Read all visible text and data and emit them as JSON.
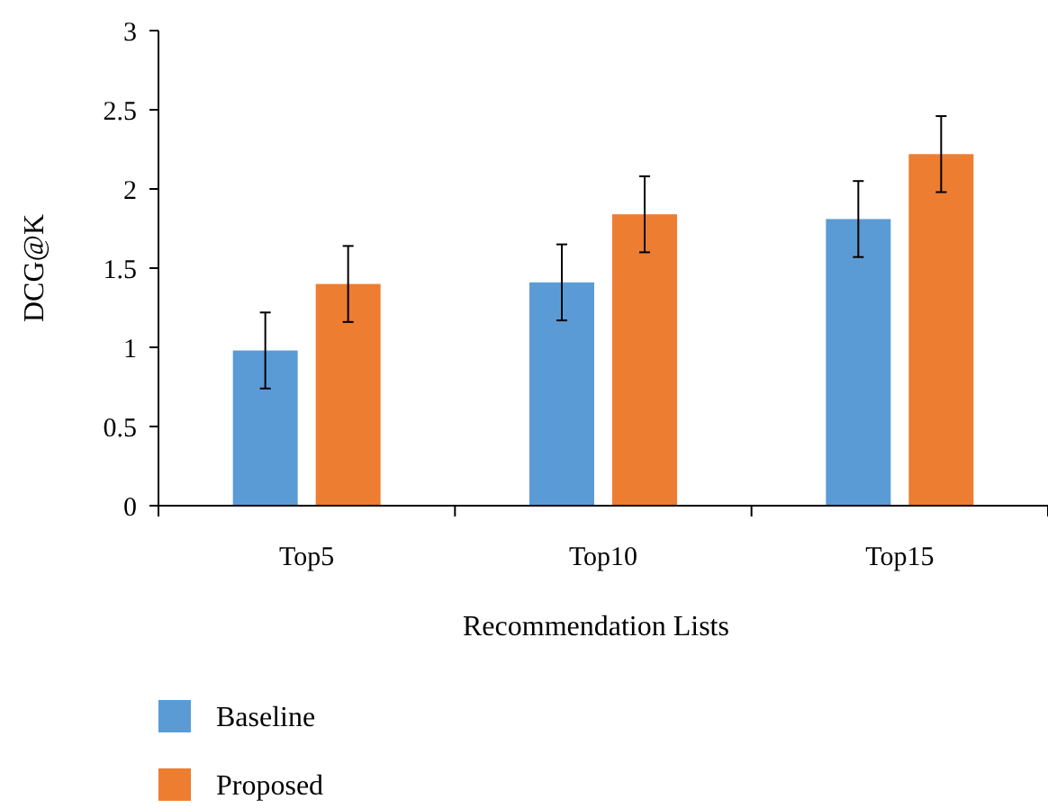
{
  "chart_data": {
    "type": "bar",
    "xlabel": "Recommendation Lists",
    "ylabel": "DCG@K",
    "categories": [
      "Top5",
      "Top10",
      "Top15"
    ],
    "series": [
      {
        "name": "Baseline",
        "color": "#5b9bd5",
        "values": [
          0.98,
          1.41,
          1.81
        ],
        "errors": [
          0.24,
          0.24,
          0.24
        ]
      },
      {
        "name": "Proposed",
        "color": "#ed7d31",
        "values": [
          1.4,
          1.84,
          2.22
        ],
        "errors": [
          0.24,
          0.24,
          0.24
        ]
      }
    ],
    "ylim": [
      0,
      3
    ],
    "yticks": [
      0,
      0.5,
      1,
      1.5,
      2,
      2.5,
      3
    ],
    "grid": false,
    "legend": "bottom left"
  }
}
